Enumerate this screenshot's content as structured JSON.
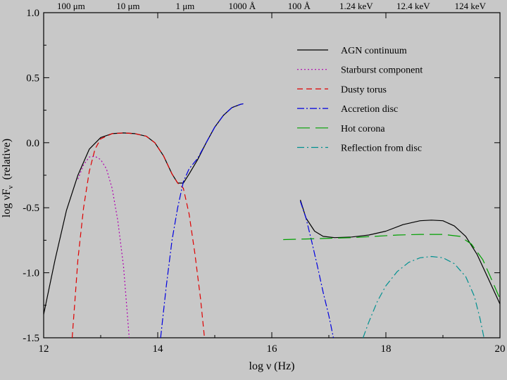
{
  "chart_data": {
    "type": "line",
    "xlabel": "log ν (Hz)",
    "ylabel": "log νF",
    "ylabel_sub": "ν",
    "ylabel_suffix": "  (relative)",
    "xlim": [
      12,
      20
    ],
    "ylim": [
      -1.5,
      1.0
    ],
    "x_ticks": [
      {
        "v": 12,
        "label": "12"
      },
      {
        "v": 14,
        "label": "14"
      },
      {
        "v": 16,
        "label": "16"
      },
      {
        "v": 18,
        "label": "18"
      },
      {
        "v": 20,
        "label": "20"
      }
    ],
    "y_ticks": [
      {
        "v": 1.0,
        "label": "1.0"
      },
      {
        "v": 0.5,
        "label": "0.5"
      },
      {
        "v": 0.0,
        "label": "0.0"
      },
      {
        "v": -0.5,
        "label": "-0.5"
      },
      {
        "v": -1.0,
        "label": "-1.0"
      },
      {
        "v": -1.5,
        "label": "-1.5"
      }
    ],
    "top_axis": [
      {
        "x": 12.48,
        "label": "100 μm"
      },
      {
        "x": 13.48,
        "label": "10 μm"
      },
      {
        "x": 14.48,
        "label": "1 μm"
      },
      {
        "x": 15.48,
        "label": "1000 Å"
      },
      {
        "x": 16.48,
        "label": "100 Å"
      },
      {
        "x": 17.48,
        "label": "1.24 keV"
      },
      {
        "x": 18.48,
        "label": "12.4 keV"
      },
      {
        "x": 19.48,
        "label": "124 keV"
      }
    ],
    "legend_position": "top-right",
    "series": [
      {
        "name": "AGN continuum",
        "color": "#000000",
        "dash": "",
        "segments": [
          [
            [
              12.0,
              -1.32
            ],
            [
              12.2,
              -0.9
            ],
            [
              12.4,
              -0.52
            ],
            [
              12.6,
              -0.25
            ],
            [
              12.8,
              -0.05
            ],
            [
              13.0,
              0.04
            ],
            [
              13.2,
              0.07
            ],
            [
              13.4,
              0.075
            ],
            [
              13.6,
              0.07
            ],
            [
              13.8,
              0.05
            ],
            [
              13.95,
              0.0
            ],
            [
              14.1,
              -0.1
            ],
            [
              14.25,
              -0.24
            ],
            [
              14.35,
              -0.31
            ],
            [
              14.45,
              -0.31
            ],
            [
              14.55,
              -0.24
            ],
            [
              14.7,
              -0.13
            ],
            [
              14.85,
              0.0
            ],
            [
              15.0,
              0.12
            ],
            [
              15.15,
              0.21
            ],
            [
              15.3,
              0.27
            ],
            [
              15.45,
              0.295
            ],
            [
              15.5,
              0.3
            ]
          ],
          [
            [
              16.5,
              -0.44
            ],
            [
              16.6,
              -0.58
            ],
            [
              16.75,
              -0.68
            ],
            [
              16.9,
              -0.72
            ],
            [
              17.1,
              -0.73
            ],
            [
              17.4,
              -0.725
            ],
            [
              17.7,
              -0.71
            ],
            [
              18.0,
              -0.68
            ],
            [
              18.3,
              -0.63
            ],
            [
              18.6,
              -0.6
            ],
            [
              18.8,
              -0.595
            ],
            [
              19.0,
              -0.6
            ],
            [
              19.2,
              -0.64
            ],
            [
              19.4,
              -0.72
            ],
            [
              19.6,
              -0.86
            ],
            [
              19.8,
              -1.05
            ],
            [
              20.0,
              -1.24
            ]
          ]
        ]
      },
      {
        "name": "Starburst component",
        "color": "#b000b0",
        "dash": "2,3",
        "segments": [
          [
            [
              12.6,
              -0.28
            ],
            [
              12.7,
              -0.17
            ],
            [
              12.8,
              -0.11
            ],
            [
              12.9,
              -0.105
            ],
            [
              13.0,
              -0.13
            ],
            [
              13.1,
              -0.2
            ],
            [
              13.2,
              -0.35
            ],
            [
              13.3,
              -0.6
            ],
            [
              13.4,
              -0.95
            ],
            [
              13.5,
              -1.5
            ]
          ]
        ]
      },
      {
        "name": "Dusty torus",
        "color": "#e00000",
        "dash": "8,5",
        "segments": [
          [
            [
              12.5,
              -1.5
            ],
            [
              12.55,
              -1.2
            ],
            [
              12.6,
              -0.9
            ],
            [
              12.7,
              -0.5
            ],
            [
              12.8,
              -0.22
            ],
            [
              12.9,
              -0.05
            ],
            [
              13.0,
              0.03
            ],
            [
              13.2,
              0.07
            ],
            [
              13.4,
              0.075
            ],
            [
              13.6,
              0.07
            ],
            [
              13.8,
              0.05
            ],
            [
              13.95,
              0.0
            ],
            [
              14.1,
              -0.1
            ],
            [
              14.25,
              -0.24
            ],
            [
              14.35,
              -0.31
            ],
            [
              14.45,
              -0.35
            ],
            [
              14.55,
              -0.55
            ],
            [
              14.65,
              -0.85
            ],
            [
              14.75,
              -1.2
            ],
            [
              14.82,
              -1.5
            ]
          ]
        ]
      },
      {
        "name": "Accretion disc",
        "color": "#0000e0",
        "dash": "10,3,2,3",
        "segments": [
          [
            [
              14.05,
              -1.5
            ],
            [
              14.15,
              -1.1
            ],
            [
              14.25,
              -0.75
            ],
            [
              14.35,
              -0.5
            ],
            [
              14.45,
              -0.3
            ],
            [
              14.55,
              -0.2
            ],
            [
              14.7,
              -0.12
            ],
            [
              14.85,
              0.0
            ],
            [
              15.0,
              0.12
            ],
            [
              15.15,
              0.21
            ],
            [
              15.3,
              0.27
            ],
            [
              15.45,
              0.295
            ],
            [
              15.5,
              0.3
            ]
          ],
          [
            [
              16.5,
              -0.45
            ],
            [
              16.6,
              -0.58
            ],
            [
              16.7,
              -0.76
            ],
            [
              16.8,
              -0.95
            ],
            [
              16.9,
              -1.15
            ],
            [
              17.0,
              -1.33
            ],
            [
              17.08,
              -1.5
            ]
          ]
        ]
      },
      {
        "name": "Hot corona",
        "color": "#00a000",
        "dash": "18,8",
        "segments": [
          [
            [
              16.2,
              -0.745
            ],
            [
              16.6,
              -0.74
            ],
            [
              17.0,
              -0.735
            ],
            [
              17.4,
              -0.73
            ],
            [
              17.8,
              -0.72
            ],
            [
              18.2,
              -0.71
            ],
            [
              18.6,
              -0.705
            ],
            [
              19.0,
              -0.705
            ],
            [
              19.3,
              -0.72
            ],
            [
              19.5,
              -0.78
            ],
            [
              19.7,
              -0.9
            ],
            [
              19.85,
              -1.05
            ],
            [
              20.0,
              -1.2
            ]
          ]
        ]
      },
      {
        "name": "Reflection from disc",
        "color": "#009090",
        "dash": "10,4,2,4",
        "segments": [
          [
            [
              17.6,
              -1.5
            ],
            [
              17.7,
              -1.38
            ],
            [
              17.85,
              -1.22
            ],
            [
              18.0,
              -1.1
            ],
            [
              18.2,
              -0.99
            ],
            [
              18.4,
              -0.92
            ],
            [
              18.6,
              -0.885
            ],
            [
              18.8,
              -0.875
            ],
            [
              19.0,
              -0.885
            ],
            [
              19.2,
              -0.93
            ],
            [
              19.4,
              -1.03
            ],
            [
              19.55,
              -1.18
            ],
            [
              19.65,
              -1.35
            ],
            [
              19.72,
              -1.5
            ]
          ]
        ]
      }
    ]
  }
}
